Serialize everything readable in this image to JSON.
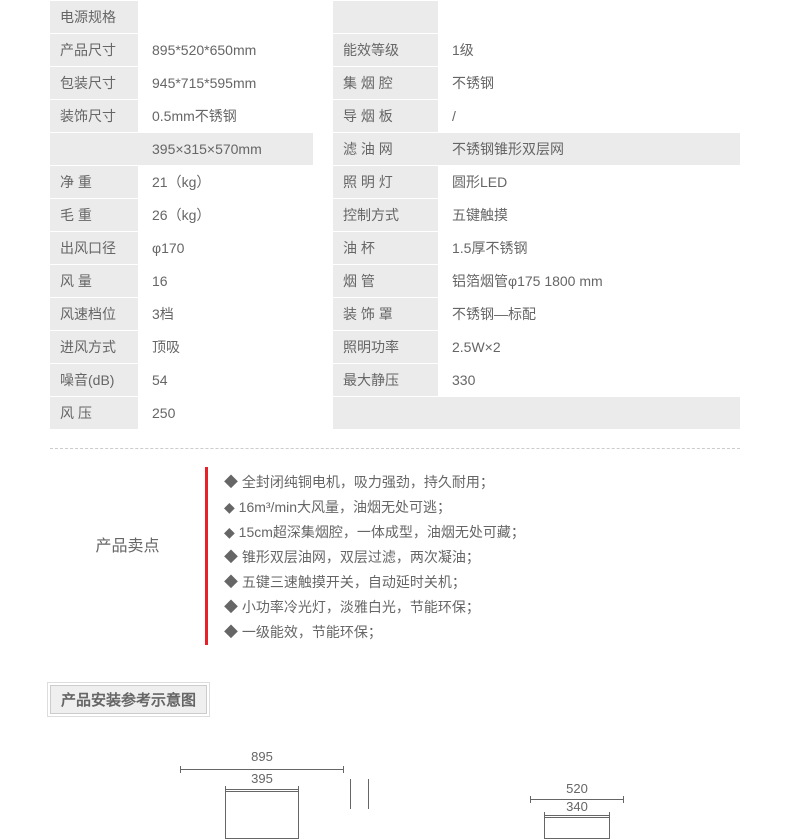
{
  "specs": {
    "rows": [
      {
        "l1": "电源规格",
        "v1": "",
        "l2": "",
        "v2": ""
      },
      {
        "l1": "产品尺寸",
        "v1": "895*520*650mm",
        "l2": "能效等级",
        "v2": "1级"
      },
      {
        "l1": "包装尺寸",
        "v1": "945*715*595mm",
        "l2": "集 烟 腔",
        "v2": "不锈钢"
      },
      {
        "l1": "装饰尺寸",
        "v1": "0.5mm不锈钢",
        "l2": "导 烟 板",
        "v2": "/"
      },
      {
        "l1": "",
        "v1": "395×315×570mm",
        "l2": "滤 油 网",
        "v2": "不锈钢锥形双层网"
      },
      {
        "l1": "净     重",
        "v1": "21（kg）",
        "l2": "照 明 灯",
        "v2": "圆形LED"
      },
      {
        "l1": "毛     重",
        "v1": "26（kg）",
        "l2": "控制方式",
        "v2": "五键触摸"
      },
      {
        "l1": "出风口径",
        "v1": "φ170",
        "l2": "油     杯",
        "v2": "1.5厚不锈钢"
      },
      {
        "l1": "风     量",
        "v1": "16",
        "l2": "烟     管",
        "v2": "铝箔烟管φ175  1800 mm"
      },
      {
        "l1": "风速档位",
        "v1": "3档",
        "l2": "装 饰 罩",
        "v2": "不锈钢—标配"
      },
      {
        "l1": "进风方式",
        "v1": "顶吸",
        "l2": "照明功率",
        "v2": "2.5W×2"
      },
      {
        "l1": "噪音(dB)",
        "v1": "54",
        "l2": "最大静压",
        "v2": "330"
      },
      {
        "l1": "风     压",
        "v1": "250",
        "l2": "",
        "v2": ""
      }
    ],
    "label_bg": "#ebebeb",
    "text_color": "#666666"
  },
  "sellingPoints": {
    "title": "产品卖点",
    "bar_color": "#e62129",
    "items": [
      "◆ 全封闭纯铜电机，吸力强劲，持久耐用；",
      "◆ 16m³/min大风量，油烟无处可逃；",
      "◆ 15cm超深集烟腔，一体成型，油烟无处可藏；",
      "◆ 锥形双层油网，双层过滤，两次凝油；",
      "◆ 五键三速触摸开关，自动延时关机；",
      "◆ 小功率冷光灯，淡雅白光，节能环保；",
      "◆ 一级能效，节能环保；"
    ]
  },
  "installTitle": "产品安装参考示意图",
  "diagram": {
    "dims": {
      "w1": "895",
      "w2": "395",
      "w3": "520",
      "w4": "340"
    },
    "line_color": "#666666"
  }
}
